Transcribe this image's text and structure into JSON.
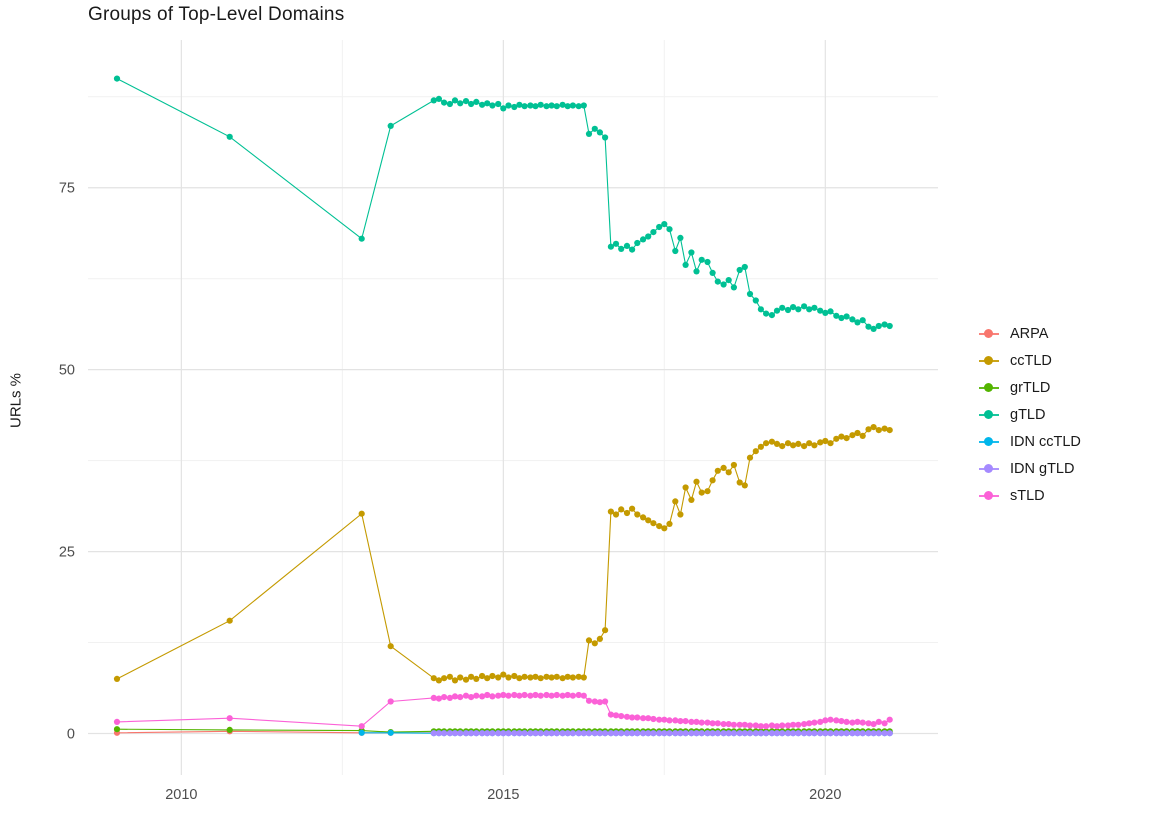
{
  "chart_data": {
    "type": "line",
    "title": "Groups of Top-Level Domains",
    "xlabel": "",
    "ylabel": "URLs %",
    "xlim": [
      2008.55,
      2021.75
    ],
    "ylim": [
      -5.7,
      95.3
    ],
    "x_ticks": [
      2010,
      2015,
      2020
    ],
    "y_ticks": [
      0,
      25,
      50,
      75
    ],
    "x_minor": [
      2012.5,
      2017.5
    ],
    "y_minor": [
      12.5,
      37.5,
      62.5,
      87.5
    ],
    "grid": "on",
    "legend_position": "right",
    "x_monthly": [
      2013.92,
      2014,
      2014.08,
      2014.17,
      2014.25,
      2014.33,
      2014.42,
      2014.5,
      2014.58,
      2014.67,
      2014.75,
      2014.83,
      2014.92,
      2015,
      2015.08,
      2015.17,
      2015.25,
      2015.33,
      2015.42,
      2015.5,
      2015.58,
      2015.67,
      2015.75,
      2015.83,
      2015.92,
      2016,
      2016.08,
      2016.17,
      2016.25,
      2016.33,
      2016.42,
      2016.5,
      2016.58,
      2016.67,
      2016.75,
      2016.83,
      2016.92,
      2017,
      2017.08,
      2017.17,
      2017.25,
      2017.33,
      2017.42,
      2017.5,
      2017.58,
      2017.67,
      2017.75,
      2017.83,
      2017.92,
      2018,
      2018.08,
      2018.17,
      2018.25,
      2018.33,
      2018.42,
      2018.5,
      2018.58,
      2018.67,
      2018.75,
      2018.83,
      2018.92,
      2019,
      2019.08,
      2019.17,
      2019.25,
      2019.33,
      2019.42,
      2019.5,
      2019.58,
      2019.67,
      2019.75,
      2019.83,
      2019.92,
      2020,
      2020.08,
      2020.17,
      2020.25,
      2020.33,
      2020.42,
      2020.5,
      2020.58,
      2020.67,
      2020.75,
      2020.83,
      2020.92,
      2021
    ],
    "series": [
      {
        "name": "ARPA",
        "color": "#F8766D",
        "x_extra": [
          2009,
          2010.75,
          2012.8,
          2013.25
        ],
        "y_extra": [
          0.1,
          0.3,
          0.1,
          0.1
        ],
        "y_const": 0.1
      },
      {
        "name": "ccTLD",
        "color": "#C49A00",
        "x_extra": [
          2009,
          2010.75,
          2012.8,
          2013.25
        ],
        "y_extra": [
          7.5,
          15.5,
          30.2,
          12.0
        ],
        "y_monthly": [
          7.6,
          7.3,
          7.6,
          7.8,
          7.3,
          7.7,
          7.4,
          7.8,
          7.5,
          7.9,
          7.6,
          7.9,
          7.7,
          8.1,
          7.7,
          7.9,
          7.6,
          7.8,
          7.7,
          7.8,
          7.6,
          7.8,
          7.7,
          7.8,
          7.6,
          7.8,
          7.7,
          7.8,
          7.7,
          12.8,
          12.4,
          13,
          14.2,
          30.5,
          30.1,
          30.8,
          30.3,
          30.9,
          30.1,
          29.7,
          29.3,
          28.9,
          28.5,
          28.2,
          28.8,
          31.9,
          30.1,
          33.8,
          32.1,
          34.6,
          33.1,
          33.3,
          34.8,
          36.1,
          36.5,
          35.9,
          36.9,
          34.5,
          34.1,
          37.9,
          38.8,
          39.4,
          39.9,
          40.1,
          39.8,
          39.5,
          39.9,
          39.6,
          39.8,
          39.5,
          39.9,
          39.6,
          40,
          40.2,
          39.9,
          40.5,
          40.8,
          40.6,
          41,
          41.3,
          40.9,
          41.8,
          42.1,
          41.7,
          41.9,
          41.7
        ]
      },
      {
        "name": "grTLD",
        "color": "#53B400",
        "x_extra": [
          2009,
          2010.75,
          2012.8,
          2013.25
        ],
        "y_extra": [
          0.6,
          0.5,
          0.4,
          0.2
        ],
        "y_const": 0.3
      },
      {
        "name": "gTLD",
        "color": "#00C094",
        "x_extra": [
          2009,
          2010.75,
          2012.8,
          2013.25
        ],
        "y_extra": [
          90,
          82,
          68,
          83.5
        ],
        "y_monthly": [
          87,
          87.2,
          86.7,
          86.5,
          87,
          86.6,
          86.9,
          86.5,
          86.8,
          86.4,
          86.6,
          86.3,
          86.5,
          85.9,
          86.3,
          86.1,
          86.4,
          86.2,
          86.3,
          86.2,
          86.4,
          86.2,
          86.3,
          86.2,
          86.4,
          86.2,
          86.3,
          86.2,
          86.3,
          82.4,
          83.1,
          82.6,
          81.9,
          66.9,
          67.3,
          66.6,
          67,
          66.5,
          67.4,
          67.9,
          68.3,
          68.9,
          69.6,
          70,
          69.3,
          66.3,
          68.1,
          64.4,
          66.1,
          63.5,
          65.1,
          64.8,
          63.3,
          62.1,
          61.7,
          62.3,
          61.3,
          63.7,
          64.1,
          60.4,
          59.5,
          58.3,
          57.7,
          57.5,
          58.1,
          58.5,
          58.2,
          58.6,
          58.3,
          58.7,
          58.3,
          58.5,
          58.1,
          57.8,
          58,
          57.4,
          57.1,
          57.3,
          56.9,
          56.5,
          56.8,
          55.9,
          55.6,
          56,
          56.2,
          56
        ]
      },
      {
        "name": "IDN ccTLD",
        "color": "#00B6EB",
        "x_extra": [
          2012.8,
          2013.25
        ],
        "y_extra": [
          0.1,
          0.1
        ],
        "y_const": 0.05
      },
      {
        "name": "IDN gTLD",
        "color": "#A58AFF",
        "x_extra": [],
        "y_extra": [],
        "y_const": 0.05
      },
      {
        "name": "sTLD",
        "color": "#FB61D7",
        "x_extra": [
          2009,
          2010.75,
          2012.8,
          2013.25
        ],
        "y_extra": [
          1.6,
          2.1,
          1.0,
          4.4
        ],
        "y_monthly": [
          4.9,
          4.8,
          5,
          4.9,
          5.1,
          5,
          5.2,
          5,
          5.2,
          5.1,
          5.3,
          5.1,
          5.2,
          5.3,
          5.2,
          5.3,
          5.2,
          5.3,
          5.2,
          5.3,
          5.2,
          5.3,
          5.2,
          5.3,
          5.2,
          5.3,
          5.2,
          5.3,
          5.2,
          4.5,
          4.4,
          4.3,
          4.4,
          2.6,
          2.5,
          2.4,
          2.3,
          2.2,
          2.2,
          2.1,
          2.1,
          2,
          1.9,
          1.9,
          1.8,
          1.8,
          1.7,
          1.7,
          1.6,
          1.6,
          1.5,
          1.5,
          1.4,
          1.4,
          1.3,
          1.3,
          1.2,
          1.2,
          1.2,
          1.1,
          1.1,
          1,
          1,
          1.1,
          1,
          1.1,
          1.1,
          1.2,
          1.2,
          1.3,
          1.4,
          1.5,
          1.6,
          1.8,
          1.9,
          1.8,
          1.7,
          1.6,
          1.5,
          1.6,
          1.5,
          1.4,
          1.3,
          1.6,
          1.4,
          1.9
        ]
      }
    ]
  }
}
